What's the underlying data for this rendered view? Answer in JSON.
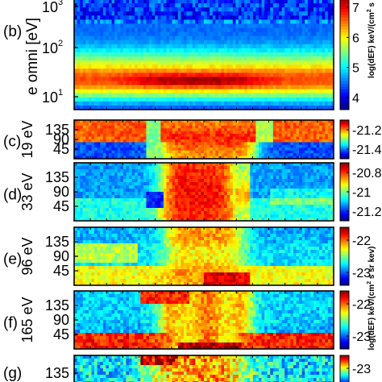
{
  "chart_data": [
    {
      "type": "heatmap",
      "panel": "(b)",
      "ylabel": "e omni [eV]",
      "yscale": "log",
      "yticks": [
        "10",
        "10",
        "10"
      ],
      "ytick_exponents": [
        "1",
        "2",
        "3"
      ],
      "colorbar": {
        "label_parts": [
          "log(dEF) keV/(cm",
          "2",
          " s"
        ],
        "ticks": [
          "4",
          "5",
          "6",
          "7"
        ],
        "range": [
          3.6,
          7.4
        ]
      }
    },
    {
      "type": "heatmap",
      "panel": "(c)",
      "ylabel": "19 eV",
      "yticks": [
        "135",
        "90",
        "45"
      ],
      "colorbar": {
        "ticks": [
          "-21.2",
          "-21.4"
        ],
        "range": [
          -21.5,
          -21.1
        ]
      }
    },
    {
      "type": "heatmap",
      "panel": "(d)",
      "ylabel": "33 eV",
      "yticks": [
        "135",
        "90",
        "45"
      ],
      "colorbar": {
        "ticks": [
          "-20.8",
          "-21",
          "-21.2"
        ],
        "range": [
          -21.3,
          -20.7
        ]
      }
    },
    {
      "type": "heatmap",
      "panel": "(e)",
      "ylabel": "96 eV",
      "yticks": [
        "135",
        "90",
        "45"
      ],
      "colorbar": {
        "label_parts": [
          "log(dEF) keV/(cm",
          "2",
          " s sr kev)"
        ],
        "ticks": [
          "-22",
          "-23"
        ],
        "range": [
          -23.4,
          -21.6
        ]
      }
    },
    {
      "type": "heatmap",
      "panel": "(f)",
      "ylabel": "165 eV",
      "yticks": [
        "135",
        "90",
        "45"
      ],
      "colorbar": {
        "ticks": [
          "-22",
          "-23"
        ],
        "range": [
          -23.4,
          -21.6
        ]
      }
    },
    {
      "type": "heatmap",
      "panel": "(g)",
      "ylabel": "",
      "yticks": [
        "135"
      ],
      "colorbar": {
        "ticks": [
          "-23"
        ],
        "range": [
          -23.6,
          -22.6
        ]
      }
    }
  ]
}
